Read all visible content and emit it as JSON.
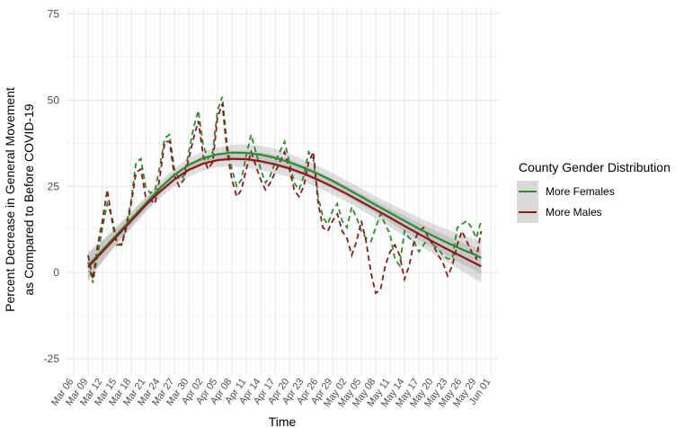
{
  "chart_data": {
    "type": "line",
    "xlabel": "Time",
    "ylabel_lines": [
      "Percent Decrease in General Movement",
      "as Compared to Before COVID-19"
    ],
    "ylim": [
      -30,
      77
    ],
    "yticks": [
      -25,
      0,
      25,
      50,
      75
    ],
    "x_ticks": [
      "Mar 06",
      "Mar 09",
      "Mar 12",
      "Mar 15",
      "Mar 18",
      "Mar 21",
      "Mar 24",
      "Mar 27",
      "Mar 30",
      "Apr 02",
      "Apr 05",
      "Apr 08",
      "Apr 11",
      "Apr 14",
      "Apr 17",
      "Apr 20",
      "Apr 23",
      "Apr 26",
      "Apr 29",
      "May 02",
      "May 05",
      "May 08",
      "May 11",
      "May 14",
      "May 17",
      "May 20",
      "May 23",
      "May 26",
      "May 29",
      "Jun 01"
    ],
    "x_tick_day": [
      0,
      3,
      6,
      9,
      12,
      15,
      18,
      21,
      24,
      27,
      30,
      33,
      36,
      39,
      42,
      45,
      48,
      51,
      54,
      57,
      60,
      63,
      66,
      69,
      72,
      75,
      78,
      81,
      84,
      87
    ],
    "xlim_day": [
      -1.5,
      88.5
    ],
    "grid": true,
    "legend": {
      "title": "County Gender Distribution",
      "position": "right",
      "entries": [
        "More Females",
        "More Males"
      ]
    },
    "series": [
      {
        "name": "More Females",
        "color": "#2e8b2e",
        "style": "dashed",
        "x_day": [
          3,
          4,
          5,
          6,
          7,
          8,
          9,
          10,
          11,
          12,
          13,
          14,
          15,
          16,
          17,
          18,
          19,
          20,
          21,
          22,
          23,
          24,
          25,
          26,
          27,
          28,
          29,
          30,
          31,
          32,
          33,
          34,
          35,
          36,
          37,
          38,
          39,
          40,
          41,
          42,
          43,
          44,
          45,
          46,
          47,
          48,
          49,
          50,
          51,
          52,
          53,
          54,
          55,
          56,
          57,
          58,
          59,
          60,
          61,
          62,
          63,
          64,
          65,
          66,
          67,
          68,
          69,
          70,
          71,
          72,
          73,
          74,
          75,
          76,
          77,
          78,
          79,
          80,
          81,
          82,
          83,
          84,
          85
        ],
        "values": [
          3,
          -3,
          5,
          13,
          20,
          16,
          9,
          8,
          14,
          21,
          32,
          33,
          25,
          23,
          24,
          31,
          39,
          40,
          30,
          27,
          28,
          35,
          42,
          47,
          37,
          33,
          35,
          47,
          51,
          37,
          30,
          25,
          27,
          34,
          40,
          35,
          30,
          26,
          28,
          32,
          35,
          38,
          32,
          26,
          24,
          28,
          35,
          33,
          22,
          16,
          14,
          18,
          20,
          15,
          13,
          19,
          16,
          12,
          10,
          9,
          13,
          17,
          14,
          11,
          4,
          2,
          12,
          10,
          9,
          6,
          8,
          10,
          8,
          7,
          5,
          4,
          4,
          13,
          14,
          15,
          13,
          10,
          15
        ]
      },
      {
        "name": "More Males",
        "color": "#8b1a1a",
        "style": "dashed",
        "x_day": [
          3,
          4,
          5,
          6,
          7,
          8,
          9,
          10,
          11,
          12,
          13,
          14,
          15,
          16,
          17,
          18,
          19,
          20,
          21,
          22,
          23,
          24,
          25,
          26,
          27,
          28,
          29,
          30,
          31,
          32,
          33,
          34,
          35,
          36,
          37,
          38,
          39,
          40,
          41,
          42,
          43,
          44,
          45,
          46,
          47,
          48,
          49,
          50,
          51,
          52,
          53,
          54,
          55,
          56,
          57,
          58,
          59,
          60,
          61,
          62,
          63,
          64,
          65,
          66,
          67,
          68,
          69,
          70,
          71,
          72,
          73,
          74,
          75,
          76,
          77,
          78,
          79,
          80,
          81,
          82,
          83,
          84,
          85
        ],
        "values": [
          5,
          -2,
          8,
          15,
          24,
          15,
          8,
          8,
          13,
          20,
          29,
          30,
          22,
          21,
          20,
          28,
          38,
          38,
          28,
          25,
          27,
          33,
          39,
          44,
          34,
          30,
          32,
          45,
          49,
          35,
          27,
          22,
          24,
          30,
          35,
          31,
          27,
          24,
          26,
          29,
          32,
          35,
          30,
          24,
          22,
          25,
          32,
          35,
          20,
          13,
          12,
          15,
          17,
          12,
          10,
          5,
          9,
          15,
          9,
          0,
          -6,
          -5,
          2,
          6,
          8,
          5,
          -2,
          2,
          9,
          12,
          13,
          10,
          8,
          5,
          3,
          -1,
          2,
          8,
          12,
          9,
          6,
          4,
          12
        ]
      }
    ],
    "smooth": [
      {
        "name": "More Females",
        "color": "#2e8b2e",
        "x_day": [
          3,
          6,
          9,
          12,
          15,
          18,
          21,
          24,
          27,
          30,
          33,
          36,
          39,
          42,
          45,
          48,
          51,
          54,
          57,
          60,
          63,
          66,
          69,
          72,
          75,
          78,
          81,
          84,
          85
        ],
        "values": [
          2,
          6.5,
          11,
          15.5,
          20,
          24.5,
          28.3,
          31.2,
          33.2,
          34.3,
          34.8,
          34.7,
          34.2,
          33.3,
          32,
          30.4,
          28.6,
          26.6,
          24.3,
          22,
          19.6,
          17.3,
          15,
          12.7,
          10.6,
          8.6,
          6.7,
          5,
          4.2
        ],
        "band_halfwidth": [
          4,
          3,
          2.5,
          2.2,
          2,
          2,
          2,
          2,
          2,
          2,
          2.2,
          2.5,
          2.6,
          2.6,
          2.5,
          2.4,
          2.3,
          2.3,
          2.3,
          2.4,
          2.5,
          2.7,
          3,
          3.2,
          3.5,
          3.8,
          4.2,
          4.6,
          4.8
        ]
      },
      {
        "name": "More Males",
        "color": "#8b1a1a",
        "x_day": [
          3,
          6,
          9,
          12,
          15,
          18,
          21,
          24,
          27,
          30,
          33,
          36,
          39,
          42,
          45,
          48,
          51,
          54,
          57,
          60,
          63,
          66,
          69,
          72,
          75,
          78,
          81,
          84,
          85
        ],
        "values": [
          1.5,
          6,
          10.5,
          15,
          19.5,
          23.5,
          27,
          29.8,
          31.6,
          32.6,
          33,
          32.9,
          32.3,
          31.4,
          30.2,
          28.7,
          26.9,
          24.9,
          22.8,
          20.5,
          18.2,
          15.9,
          13.5,
          11.2,
          8.9,
          6.7,
          4.6,
          2.5,
          1.8
        ],
        "band_halfwidth": [
          4,
          3,
          2.5,
          2.2,
          2,
          2,
          2,
          2,
          2,
          2,
          2.2,
          2.5,
          2.6,
          2.6,
          2.5,
          2.4,
          2.3,
          2.3,
          2.3,
          2.4,
          2.5,
          2.7,
          3,
          3.2,
          3.5,
          3.8,
          4.2,
          4.6,
          4.8
        ]
      }
    ]
  }
}
